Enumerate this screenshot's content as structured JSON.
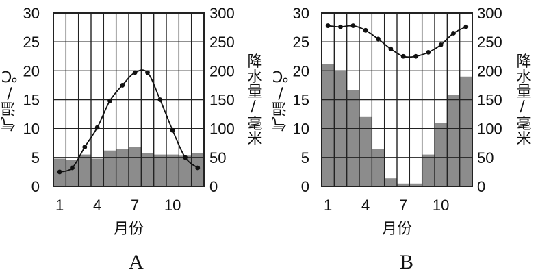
{
  "chart_data": [
    {
      "type": "bar",
      "panel_label": "A",
      "xlabel": "月份",
      "y1label": "气温/℃",
      "y2label": "降水量/毫米",
      "x_tick_labels": [
        "1",
        "4",
        "7",
        "10"
      ],
      "x": [
        1,
        2,
        3,
        4,
        5,
        6,
        7,
        8,
        9,
        10,
        11,
        12
      ],
      "y1_ticks": [
        "0",
        "5",
        "10",
        "15",
        "20",
        "25",
        "30"
      ],
      "y2_ticks": [
        "0",
        "50",
        "100",
        "150",
        "200",
        "250",
        "300"
      ],
      "y1lim": [
        0,
        30
      ],
      "y2lim": [
        0,
        300
      ],
      "grid": true,
      "series": [
        {
          "kind": "bar",
          "axis": "right",
          "values": [
            48,
            46,
            55,
            48,
            62,
            65,
            68,
            58,
            55,
            55,
            53,
            58
          ]
        },
        {
          "kind": "line",
          "axis": "left",
          "values": [
            2.5,
            3.2,
            6.8,
            10.2,
            14.8,
            17.5,
            19.7,
            19.7,
            15,
            9.7,
            5,
            3.2
          ]
        }
      ]
    },
    {
      "type": "bar",
      "panel_label": "B",
      "xlabel": "月份",
      "y1label": "气温/℃",
      "y2label": "降水量/毫米",
      "x_tick_labels": [
        "1",
        "4",
        "7",
        "10"
      ],
      "x": [
        1,
        2,
        3,
        4,
        5,
        6,
        7,
        8,
        9,
        10,
        11,
        12
      ],
      "y1_ticks": [
        "0",
        "5",
        "10",
        "15",
        "20",
        "25",
        "30"
      ],
      "y2_ticks": [
        "0",
        "50",
        "100",
        "150",
        "200",
        "250",
        "300"
      ],
      "y1lim": [
        0,
        30
      ],
      "y2lim": [
        0,
        300
      ],
      "grid": true,
      "series": [
        {
          "kind": "bar",
          "axis": "right",
          "values": [
            212,
            200,
            166,
            120,
            65,
            14,
            5,
            5,
            55,
            110,
            158,
            190
          ]
        },
        {
          "kind": "line",
          "axis": "left",
          "values": [
            27.8,
            27.6,
            27.8,
            27,
            25.5,
            23.8,
            22.5,
            22.5,
            23.2,
            24.5,
            26.5,
            27.6
          ]
        }
      ]
    }
  ],
  "colors": {
    "bar": "#8c8c8c",
    "line": "#111111",
    "grid": "#222222",
    "background": "#ffffff"
  }
}
